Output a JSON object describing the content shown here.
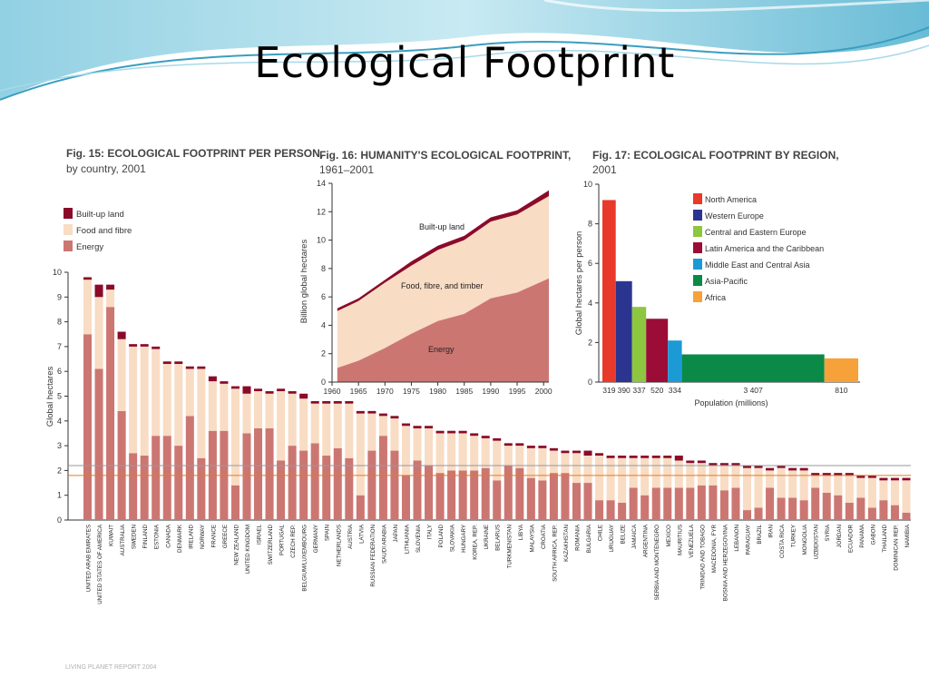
{
  "slide": {
    "title": "Ecological Footprint"
  },
  "colors": {
    "built_up": "#8b0a2a",
    "food_fibre": "#f8dcc4",
    "energy": "#cc7672",
    "fig16_builtup": "#8b0a2a"
  },
  "chart_data": [
    {
      "id": "fig15",
      "type": "bar",
      "stacked": true,
      "title": "Fig. 15: ECOLOGICAL FOOTPRINT PER PERSON,",
      "subtitle": "by country, 2001",
      "xlabel": "",
      "ylabel": "Global hectares",
      "ylim": [
        0,
        10
      ],
      "yticks": [
        0,
        1,
        2,
        3,
        4,
        5,
        6,
        7,
        8,
        9,
        10
      ],
      "reference_lines": [
        2.2,
        1.8
      ],
      "legend": [
        "Built-up land",
        "Food and fibre",
        "Energy"
      ],
      "categories": [
        "UNITED ARAB EMIRATES",
        "UNITED STATES OF AMERICA",
        "KUWAIT",
        "AUSTRALIA",
        "SWEDEN",
        "FINLAND",
        "ESTONIA",
        "CANADA",
        "DENMARK",
        "IRELAND",
        "NORWAY",
        "FRANCE",
        "GREECE",
        "NEW ZEALAND",
        "UNITED KINGDOM",
        "ISRAEL",
        "SWITZERLAND",
        "PORTUGAL",
        "CZECH REP.",
        "BELGIUM/LUXEMBOURG",
        "GERMANY",
        "SPAIN",
        "NETHERLANDS",
        "AUSTRIA",
        "LATVIA",
        "RUSSIAN FEDERATION",
        "SAUDI ARABIA",
        "JAPAN",
        "LITHUANIA",
        "SLOVENIA",
        "ITALY",
        "POLAND",
        "SLOVAKIA",
        "HUNGARY",
        "KOREA, REP.",
        "UKRAINE",
        "BELARUS",
        "TURKMENISTAN",
        "LIBYA",
        "MALAYSIA",
        "CROATIA",
        "SOUTH AFRICA, REP.",
        "KAZAKHSTAN",
        "ROMANIA",
        "BULGARIA",
        "CHILE",
        "URUGUAY",
        "BELIZE",
        "JAMAICA",
        "ARGENTINA",
        "SERBIA AND MONTENEGRO",
        "MEXICO",
        "MAURITIUS",
        "VENEZUELA",
        "TRINIDAD AND TOBAGO",
        "MACEDONIA, FYR",
        "BOSNIA AND HERZEGOVINA",
        "LEBANON",
        "PARAGUAY",
        "BRAZIL",
        "IRAN",
        "COSTA RICA",
        "TURKEY",
        "MONGOLIA",
        "UZBEKISTAN",
        "SYRIA",
        "JORDAN",
        "ECUADOR",
        "PANAMA",
        "GABON",
        "THAILAND",
        "DOMINICAN REP.",
        "NAMIBIA"
      ],
      "series": [
        {
          "name": "Energy",
          "values": [
            7.5,
            6.1,
            8.6,
            4.4,
            2.7,
            2.6,
            3.4,
            3.4,
            3.0,
            4.2,
            2.5,
            3.6,
            3.6,
            1.4,
            3.5,
            3.7,
            3.7,
            2.4,
            3.0,
            2.8,
            3.1,
            2.6,
            2.9,
            2.5,
            1.0,
            2.8,
            3.4,
            2.8,
            1.8,
            2.4,
            2.2,
            1.9,
            2.0,
            2.0,
            2.0,
            2.1,
            1.6,
            2.2,
            2.1,
            1.7,
            1.6,
            1.9,
            1.9,
            1.5,
            1.5,
            0.8,
            0.8,
            0.7,
            1.3,
            1.0,
            1.3,
            1.3,
            1.3,
            1.3,
            1.4,
            1.4,
            1.2,
            1.3,
            0.4,
            0.5,
            1.3,
            0.9,
            0.9,
            0.8,
            1.3,
            1.1,
            1.0,
            0.7,
            0.9,
            0.5,
            0.8,
            0.6,
            0.3
          ]
        },
        {
          "name": "Food and fibre",
          "values": [
            2.2,
            2.9,
            0.7,
            2.9,
            4.3,
            4.4,
            3.5,
            2.9,
            3.3,
            1.9,
            3.6,
            2.0,
            1.9,
            3.9,
            1.6,
            1.5,
            1.4,
            2.8,
            2.1,
            2.1,
            1.6,
            2.1,
            1.8,
            2.2,
            3.3,
            1.5,
            0.8,
            1.3,
            2.0,
            1.3,
            1.5,
            1.6,
            1.5,
            1.5,
            1.4,
            1.2,
            1.6,
            0.8,
            0.9,
            1.2,
            1.3,
            0.9,
            0.8,
            1.2,
            1.1,
            1.8,
            1.7,
            1.8,
            1.2,
            1.5,
            1.2,
            1.2,
            1.1,
            1.0,
            0.9,
            0.8,
            1.0,
            0.9,
            1.7,
            1.6,
            0.7,
            1.2,
            1.1,
            1.2,
            0.5,
            0.7,
            0.8,
            1.1,
            0.8,
            1.2,
            0.8,
            1.0,
            1.3
          ]
        },
        {
          "name": "Built-up land",
          "values": [
            0.1,
            0.5,
            0.2,
            0.3,
            0.1,
            0.1,
            0.1,
            0.1,
            0.1,
            0.1,
            0.1,
            0.2,
            0.1,
            0.1,
            0.3,
            0.1,
            0.1,
            0.1,
            0.1,
            0.2,
            0.1,
            0.1,
            0.1,
            0.1,
            0.1,
            0.1,
            0.1,
            0.1,
            0.1,
            0.1,
            0.1,
            0.1,
            0.1,
            0.1,
            0.1,
            0.1,
            0.1,
            0.1,
            0.1,
            0.1,
            0.1,
            0.1,
            0.1,
            0.1,
            0.2,
            0.1,
            0.1,
            0.1,
            0.1,
            0.1,
            0.1,
            0.1,
            0.2,
            0.1,
            0.1,
            0.1,
            0.1,
            0.1,
            0.1,
            0.1,
            0.1,
            0.1,
            0.1,
            0.1,
            0.1,
            0.1,
            0.1,
            0.1,
            0.1,
            0.1,
            0.1,
            0.1,
            0.1
          ]
        }
      ]
    },
    {
      "id": "fig16",
      "type": "area",
      "stacked": true,
      "title": "Fig. 16: HUMANITY'S ECOLOGICAL FOOTPRINT,",
      "subtitle": "1961–2001",
      "xlabel": "",
      "ylabel": "Billion global hectares",
      "ylim": [
        0,
        14
      ],
      "yticks": [
        0,
        2,
        4,
        6,
        8,
        10,
        12,
        14
      ],
      "xlim": [
        1960,
        2001
      ],
      "xticks": [
        1960,
        1965,
        1970,
        1975,
        1980,
        1985,
        1990,
        1995,
        2000
      ],
      "x": [
        1961,
        1965,
        1970,
        1975,
        1980,
        1985,
        1990,
        1995,
        2001
      ],
      "series": [
        {
          "name": "Energy",
          "values": [
            1.0,
            1.5,
            2.4,
            3.4,
            4.3,
            4.8,
            5.9,
            6.3,
            7.3
          ]
        },
        {
          "name": "Food, fibre, and timber",
          "values": [
            4.0,
            4.2,
            4.6,
            4.8,
            5.0,
            5.2,
            5.4,
            5.5,
            5.8
          ]
        },
        {
          "name": "Built-up land",
          "values": [
            0.2,
            0.2,
            0.2,
            0.3,
            0.3,
            0.3,
            0.3,
            0.3,
            0.4
          ]
        }
      ]
    },
    {
      "id": "fig17",
      "type": "bar",
      "variable_width": true,
      "title": "Fig. 17: ECOLOGICAL FOOTPRINT BY REGION,",
      "subtitle": "2001",
      "xlabel": "Population (millions)",
      "ylabel": "Global hectares per person",
      "ylim": [
        0,
        10
      ],
      "yticks": [
        0,
        2,
        4,
        6,
        8,
        10
      ],
      "legend_position": "top-right",
      "categories": [
        "North America",
        "Western Europe",
        "Central and Eastern Europe",
        "Latin America and the Caribbean",
        "Middle East and Central Asia",
        "Asia-Pacific",
        "Africa"
      ],
      "values": [
        9.2,
        5.1,
        3.8,
        3.2,
        2.1,
        1.4,
        1.2
      ],
      "widths": [
        319,
        390,
        337,
        520,
        334,
        3407,
        810
      ],
      "width_labels": [
        "319",
        "390",
        "337",
        "520",
        "334",
        "3 407",
        "810"
      ],
      "colors": [
        "#e8392b",
        "#2b3590",
        "#8dc63f",
        "#9b0d36",
        "#1b9ad6",
        "#0a8a46",
        "#f7a13a"
      ]
    }
  ],
  "footer": {
    "source_text": "LIVING PLANET REPORT 2004"
  }
}
